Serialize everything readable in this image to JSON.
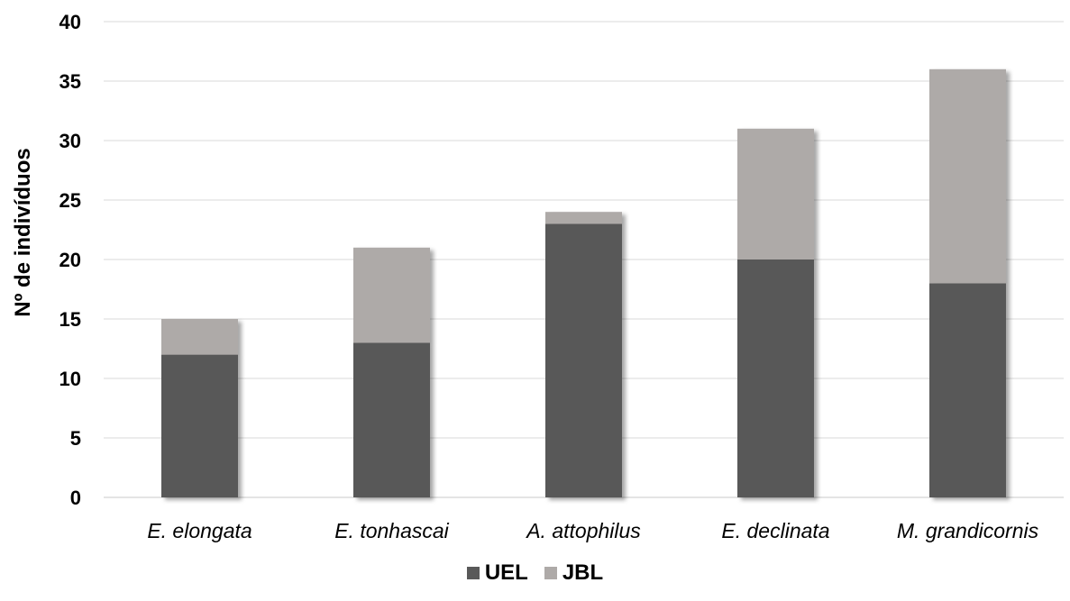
{
  "chart_data": {
    "type": "bar",
    "stacked": true,
    "categories": [
      "E. elongata",
      "E. tonhascai",
      "A. attophilus",
      "E. declinata",
      "M. grandicornis"
    ],
    "series": [
      {
        "name": "UEL",
        "values": [
          12,
          13,
          23,
          20,
          18
        ],
        "color": "#595959"
      },
      {
        "name": "JBL",
        "values": [
          3,
          8,
          1,
          11,
          18
        ],
        "color": "#aeaaa8"
      }
    ],
    "title": "",
    "xlabel": "",
    "ylabel": "Nº de indivíduos",
    "ylim": [
      0,
      40
    ],
    "yticks": [
      0,
      5,
      10,
      15,
      20,
      25,
      30,
      35,
      40
    ],
    "grid": true,
    "legend_position": "bottom"
  }
}
